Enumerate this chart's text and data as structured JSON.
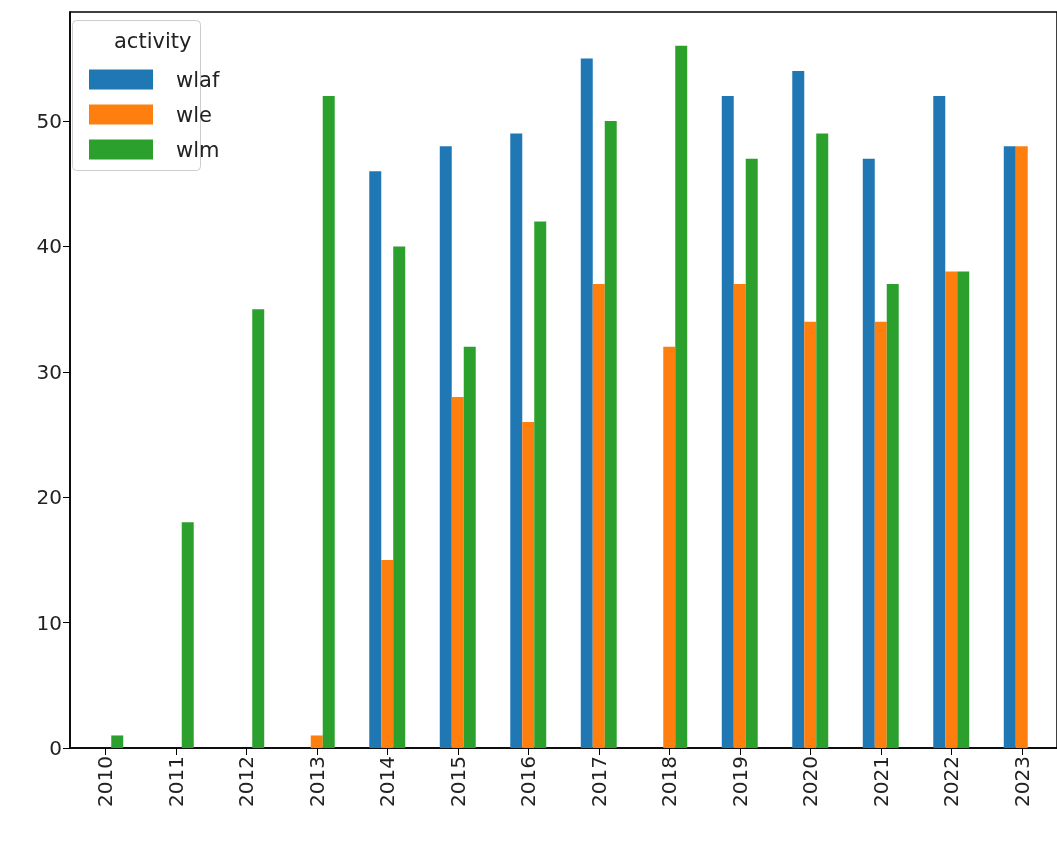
{
  "chart_data": {
    "type": "bar",
    "legend_title": "activity",
    "legend": "top left",
    "grid": false,
    "categories": [
      "2010",
      "2011",
      "2012",
      "2013",
      "2014",
      "2015",
      "2016",
      "2017",
      "2018",
      "2019",
      "2020",
      "2021",
      "2022",
      "2023"
    ],
    "series": [
      {
        "name": "wlaf",
        "color": "#1f77b4",
        "values": [
          null,
          null,
          null,
          null,
          46,
          48,
          49,
          55,
          null,
          52,
          54,
          47,
          52,
          48
        ]
      },
      {
        "name": "wle",
        "color": "#ff7f0e",
        "values": [
          null,
          null,
          null,
          1,
          15,
          28,
          26,
          37,
          32,
          37,
          34,
          34,
          38,
          48
        ]
      },
      {
        "name": "wlm",
        "color": "#2ca02c",
        "values": [
          1,
          18,
          35,
          52,
          40,
          32,
          42,
          50,
          56,
          47,
          49,
          37,
          38,
          null
        ]
      }
    ],
    "ylim": [
      0,
      58.7
    ],
    "yticks": [
      0,
      10,
      20,
      30,
      40,
      50
    ]
  }
}
